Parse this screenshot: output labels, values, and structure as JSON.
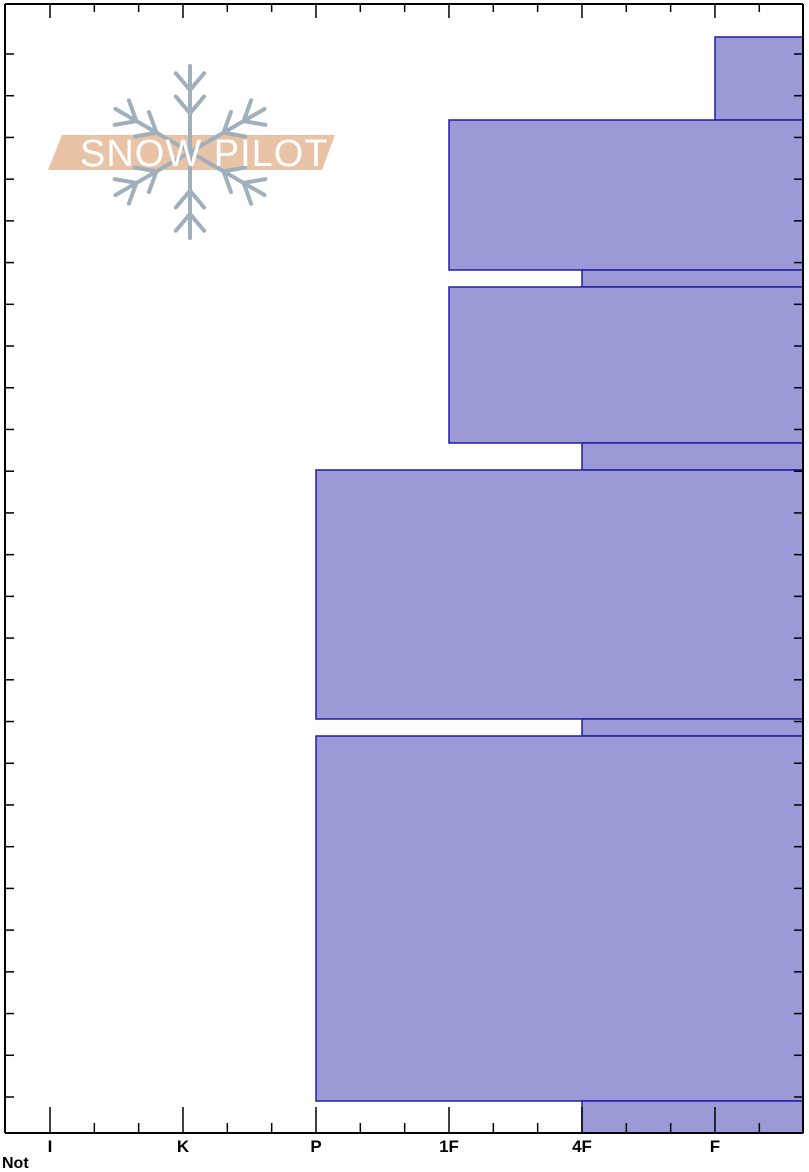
{
  "colors": {
    "bar_fill": "#9b99d6",
    "bar_stroke": "#1e1ea8",
    "axis": "#000000",
    "logo_band": "#e8c3a6",
    "logo_flake": "#9fb0bc"
  },
  "logo": {
    "text": "SNOW PILOT"
  },
  "footer": {
    "label": "Not"
  },
  "chart_data": {
    "type": "bar",
    "orientation": "horizontal",
    "x_axis": {
      "categories": [
        "I",
        "K",
        "P",
        "1F",
        "4F",
        "F"
      ],
      "tick_labels": [
        "I",
        "K",
        "P",
        "1F",
        "4F",
        "F"
      ]
    },
    "grid": false,
    "layers": [
      {
        "hardness": "F",
        "value": 5
      },
      {
        "hardness": "1F",
        "value": 3
      },
      {
        "hardness": "4F",
        "value": 4
      },
      {
        "hardness": "1F",
        "value": 3
      },
      {
        "hardness": "4F",
        "value": 4
      },
      {
        "hardness": "P",
        "value": 2
      },
      {
        "hardness": "4F",
        "value": 4
      },
      {
        "hardness": "P",
        "value": 2
      },
      {
        "hardness": "4F",
        "value": 4
      }
    ]
  }
}
